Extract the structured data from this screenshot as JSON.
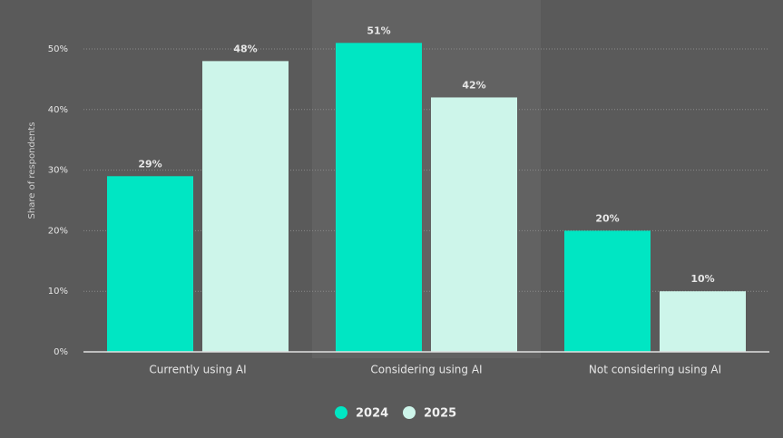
{
  "chart_data": {
    "type": "bar",
    "y_label": "Share of respondents",
    "categories": [
      "Currently using AI",
      "Considering using AI",
      "Not considering using AI"
    ],
    "series": [
      {
        "name": "2024",
        "color": "#00e6c3",
        "values": [
          29,
          51,
          20
        ],
        "value_labels": [
          "29%",
          "51%",
          "20%"
        ]
      },
      {
        "name": "2025",
        "color": "#cdf5ea",
        "values": [
          48,
          42,
          10
        ],
        "value_labels": [
          "48%",
          "42%",
          "10%"
        ]
      }
    ],
    "ylim": [
      0,
      50
    ],
    "yticks": [
      {
        "value": 0,
        "label": "0%"
      },
      {
        "value": 10,
        "label": "10%"
      },
      {
        "value": 20,
        "label": "20%"
      },
      {
        "value": 30,
        "label": "30%"
      },
      {
        "value": 40,
        "label": "40%"
      },
      {
        "value": 50,
        "label": "50%"
      }
    ],
    "grid": true
  }
}
